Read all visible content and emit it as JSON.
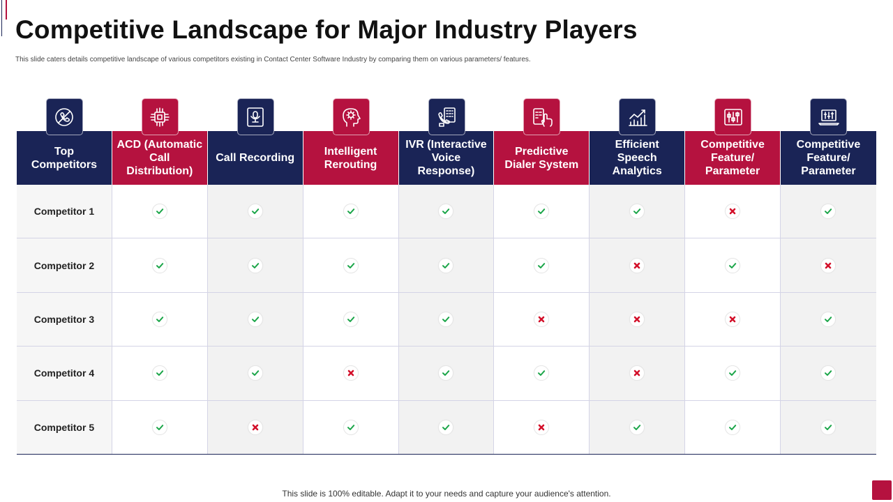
{
  "title": "Competitive Landscape for Major Industry Players",
  "subtitle": "This slide caters details competitive landscape of various competitors existing in Contact Center Software Industry by comparing them on various parameters/ features.",
  "footer": "This slide is 100% editable. Adapt it to your needs and capture your audience's attention.",
  "colors": {
    "navy": "#1a2456",
    "red": "#b5123f",
    "check": "#1aa548",
    "cross": "#d3102a"
  },
  "columns": [
    {
      "label": "Top Competitors",
      "color": "navy",
      "icon": "no-phone-icon"
    },
    {
      "label": "ACD (Automatic Call Distribution)",
      "color": "red",
      "icon": "circuit-chip-icon"
    },
    {
      "label": "Call Recording",
      "color": "navy",
      "icon": "microphone-screen-icon"
    },
    {
      "label": "Intelligent Rerouting",
      "color": "red",
      "icon": "head-gear-icon"
    },
    {
      "label": "IVR (Interactive Voice Response)",
      "color": "navy",
      "icon": "phone-keypad-icon"
    },
    {
      "label": "Predictive Dialer System",
      "color": "red",
      "icon": "touch-dialer-icon"
    },
    {
      "label": "Efficient Speech Analytics",
      "color": "navy",
      "icon": "growth-chart-icon"
    },
    {
      "label": "Competitive Feature/ Parameter",
      "color": "red",
      "icon": "equalizer-panel-icon"
    },
    {
      "label": "Competitive Feature/ Parameter",
      "color": "navy",
      "icon": "laptop-sliders-icon"
    }
  ],
  "rows": [
    {
      "label": "Competitor 1",
      "values": [
        true,
        true,
        true,
        true,
        true,
        true,
        false,
        true
      ]
    },
    {
      "label": "Competitor 2",
      "values": [
        true,
        true,
        true,
        true,
        true,
        false,
        true,
        false
      ]
    },
    {
      "label": "Competitor 3",
      "values": [
        true,
        true,
        true,
        true,
        false,
        false,
        false,
        true
      ]
    },
    {
      "label": "Competitor 4",
      "values": [
        true,
        true,
        false,
        true,
        true,
        false,
        true,
        true
      ]
    },
    {
      "label": "Competitor 5",
      "values": [
        true,
        false,
        true,
        true,
        false,
        true,
        true,
        true
      ]
    }
  ]
}
